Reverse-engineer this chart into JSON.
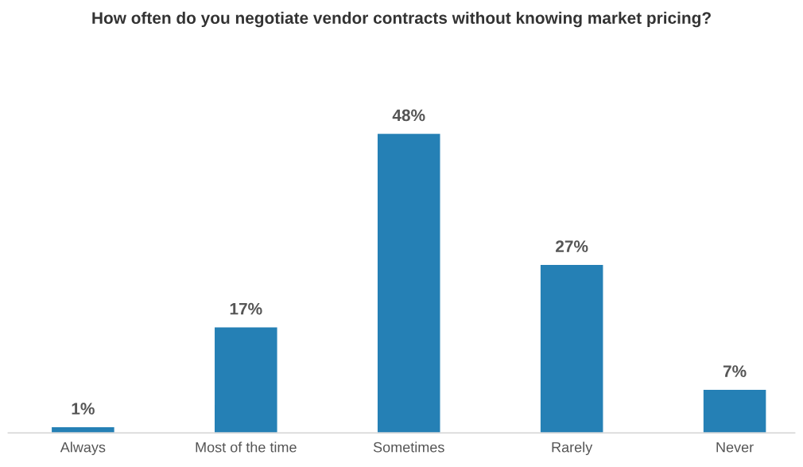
{
  "chart_data": {
    "type": "bar",
    "title": "How often do you negotiate vendor contracts without knowing market pricing?",
    "categories": [
      "Always",
      "Most of the time",
      "Sometimes",
      "Rarely",
      "Never"
    ],
    "values": [
      1,
      17,
      48,
      27,
      7
    ],
    "value_labels": [
      "1%",
      "17%",
      "48%",
      "27%",
      "7%"
    ],
    "color": "#2580b5",
    "grid": false,
    "legend": false
  }
}
